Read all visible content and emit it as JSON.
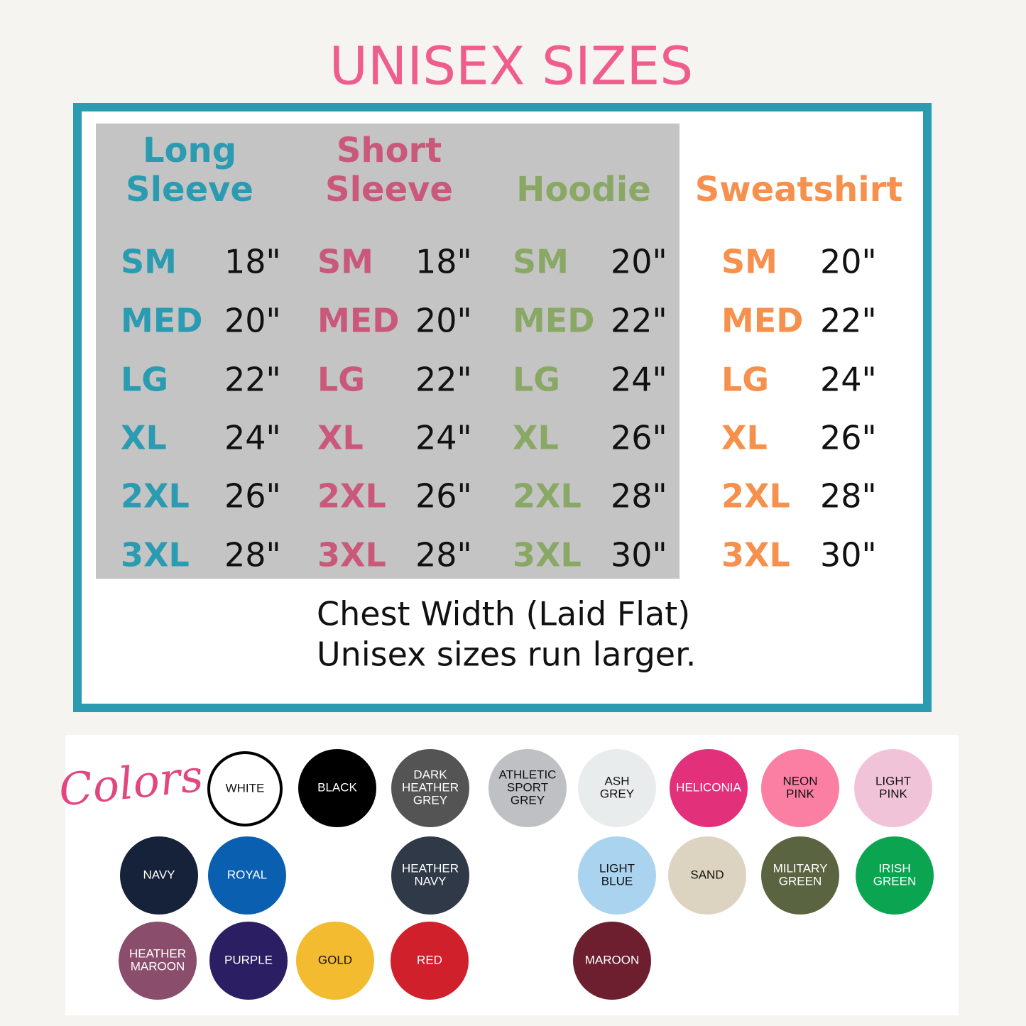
{
  "title": "UNISEX SIZES",
  "columns": [
    {
      "name": [
        "Long",
        "Sleeve"
      ],
      "color": "#2a9bb0",
      "rows": [
        [
          "SM",
          "18\""
        ],
        [
          "MED",
          "20\""
        ],
        [
          "LG",
          "22\""
        ],
        [
          "XL",
          "24\""
        ],
        [
          "2XL",
          "26\""
        ],
        [
          "3XL",
          "28\""
        ]
      ]
    },
    {
      "name": [
        "Short",
        "Sleeve"
      ],
      "color": "#c9587a",
      "rows": [
        [
          "SM",
          "18\""
        ],
        [
          "MED",
          "20\""
        ],
        [
          "LG",
          "22\""
        ],
        [
          "XL",
          "24\""
        ],
        [
          "2XL",
          "26\""
        ],
        [
          "3XL",
          "28\""
        ]
      ]
    },
    {
      "name": [
        "Hoodie"
      ],
      "color": "#8aa865",
      "rows": [
        [
          "SM",
          "20\""
        ],
        [
          "MED",
          "22\""
        ],
        [
          "LG",
          "24\""
        ],
        [
          "XL",
          "26\""
        ],
        [
          "2XL",
          "28\""
        ],
        [
          "3XL",
          "30\""
        ]
      ]
    },
    {
      "name": [
        "Sweatshirt"
      ],
      "color": "#f5904d",
      "rows": [
        [
          "SM",
          "20\""
        ],
        [
          "MED",
          "22\""
        ],
        [
          "LG",
          "24\""
        ],
        [
          "XL",
          "26\""
        ],
        [
          "2XL",
          "28\""
        ],
        [
          "3XL",
          "30\""
        ]
      ]
    }
  ],
  "notes": [
    "Chest Width (Laid Flat)",
    "Unisex sizes run larger."
  ],
  "colors_label": "Colors",
  "swatches": [
    {
      "label": [
        "WHITE"
      ],
      "color": "#ffffff",
      "text_color": "#111111"
    },
    {
      "label": [
        "BLACK"
      ],
      "color": "#000000",
      "text_color": "#ffffff"
    },
    {
      "label": [
        "DARK",
        "HEATHER",
        "GREY"
      ],
      "color": "#545454",
      "text_color": "#ffffff"
    },
    {
      "label": [
        "ATHLETIC",
        "SPORT",
        "GREY"
      ],
      "color": "#bfc0c3",
      "text_color": "#111111"
    },
    {
      "label": [
        "ASH",
        "GREY"
      ],
      "color": "#e9ecec",
      "text_color": "#111111"
    },
    {
      "label": [
        "HELICONIA"
      ],
      "color": "#e2307a",
      "text_color": "#ffffff"
    },
    {
      "label": [
        "NEON",
        "PINK"
      ],
      "color": "#fb7ea3",
      "text_color": "#111111"
    },
    {
      "label": [
        "LIGHT",
        "PINK"
      ],
      "color": "#f1c3d9",
      "text_color": "#111111"
    },
    {
      "label": [
        "NAVY"
      ],
      "color": "#16213a",
      "text_color": "#ffffff"
    },
    {
      "label": [
        "ROYAL"
      ],
      "color": "#0a5fb0",
      "text_color": "#ffffff"
    },
    {
      "label": [
        "HEATHER",
        "NAVY"
      ],
      "color": "#2f3947",
      "text_color": "#ffffff"
    },
    {
      "label": [
        "LIGHT",
        "BLUE"
      ],
      "color": "#a9d3ef",
      "text_color": "#111111"
    },
    {
      "label": [
        "SAND"
      ],
      "color": "#dcd3c0",
      "text_color": "#111111"
    },
    {
      "label": [
        "MILITARY",
        "GREEN"
      ],
      "color": "#5b6441",
      "text_color": "#ffffff"
    },
    {
      "label": [
        "IRISH",
        "GREEN"
      ],
      "color": "#0ba552",
      "text_color": "#ffffff"
    },
    {
      "label": [
        "HEATHER",
        "MAROON"
      ],
      "color": "#8a4e6c",
      "text_color": "#ffffff"
    },
    {
      "label": [
        "PURPLE"
      ],
      "color": "#2c1e62",
      "text_color": "#ffffff"
    },
    {
      "label": [
        "GOLD"
      ],
      "color": "#f3bb2f",
      "text_color": "#111111"
    },
    {
      "label": [
        "RED"
      ],
      "color": "#d0202b",
      "text_color": "#ffffff"
    },
    {
      "label": [
        "MAROON"
      ],
      "color": "#6d1f30",
      "text_color": "#ffffff"
    }
  ]
}
